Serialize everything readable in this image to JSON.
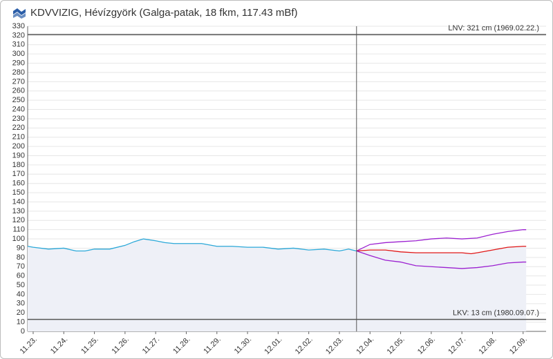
{
  "chart_data": {
    "type": "line",
    "title": "KDVVIZIG, Hévízgyörk (Galga-patak, 18 fkm, 117.43 mBf)",
    "xlim": [
      -0.18,
      16.75
    ],
    "ylim": [
      0,
      330
    ],
    "xticks": [
      {
        "value": 0,
        "label": "11.23."
      },
      {
        "value": 1,
        "label": "11.24."
      },
      {
        "value": 2,
        "label": "11.25."
      },
      {
        "value": 3,
        "label": "11.26."
      },
      {
        "value": 4,
        "label": "11.27."
      },
      {
        "value": 5,
        "label": "11.28."
      },
      {
        "value": 6,
        "label": "11.29."
      },
      {
        "value": 7,
        "label": "11.30."
      },
      {
        "value": 8,
        "label": "12.01."
      },
      {
        "value": 9,
        "label": "12.02."
      },
      {
        "value": 10,
        "label": "12.03."
      },
      {
        "value": 11,
        "label": "12.04."
      },
      {
        "value": 12,
        "label": "12.05."
      },
      {
        "value": 13,
        "label": "12.06."
      },
      {
        "value": 14,
        "label": "12.07."
      },
      {
        "value": 15,
        "label": "12.08."
      },
      {
        "value": 16,
        "label": "12.09."
      }
    ],
    "yticks": [
      0,
      10,
      20,
      30,
      40,
      50,
      60,
      70,
      80,
      90,
      100,
      110,
      120,
      130,
      140,
      150,
      160,
      170,
      180,
      190,
      200,
      210,
      220,
      230,
      240,
      250,
      260,
      270,
      280,
      290,
      300,
      310,
      320,
      330
    ],
    "grid": true,
    "now_line": 10.56,
    "reference_lines": [
      {
        "value": 321,
        "label": "LNV: 321 cm (1969.02.22.)"
      },
      {
        "value": 13,
        "label": "LKV: 13 cm (1980.09.07.)"
      }
    ],
    "series": [
      {
        "color": "#2aa8d8",
        "x": [
          -0.18,
          0,
          0.5,
          1,
          1.4,
          1.7,
          2,
          2.5,
          3,
          3.3,
          3.6,
          4,
          4.3,
          4.6,
          5,
          5.5,
          6,
          6.5,
          7,
          7.5,
          8,
          8.5,
          9,
          9.5,
          10,
          10.3,
          10.56
        ],
        "values": [
          92,
          91,
          89,
          90,
          87,
          87,
          89,
          89,
          93,
          97,
          100,
          98,
          96,
          95,
          95,
          95,
          92,
          92,
          91,
          91,
          89,
          90,
          88,
          89,
          87,
          89,
          87
        ]
      },
      {
        "color": "#9b1fd0",
        "x": [
          10.56,
          11,
          11.5,
          12,
          12.5,
          13,
          13.5,
          14,
          14.5,
          15,
          15.5,
          16,
          16.1
        ],
        "values": [
          87,
          94,
          96,
          97,
          98,
          100,
          101,
          100,
          101,
          105,
          108,
          110,
          110
        ]
      },
      {
        "color": "#e01515",
        "x": [
          10.56,
          11,
          11.5,
          12,
          12.5,
          13,
          13.5,
          14,
          14.3,
          14.5,
          15,
          15.5,
          16,
          16.1
        ],
        "values": [
          87,
          88,
          88,
          86,
          85,
          85,
          85,
          85,
          84,
          85,
          88,
          91,
          92,
          92
        ]
      },
      {
        "color": "#9b1fd0",
        "x": [
          10.56,
          11,
          11.5,
          12,
          12.5,
          13,
          13.5,
          14,
          14.5,
          15,
          15.5,
          16,
          16.1
        ],
        "values": [
          87,
          82,
          77,
          75,
          71,
          70,
          69,
          68,
          69,
          71,
          74,
          75,
          75
        ]
      }
    ]
  }
}
